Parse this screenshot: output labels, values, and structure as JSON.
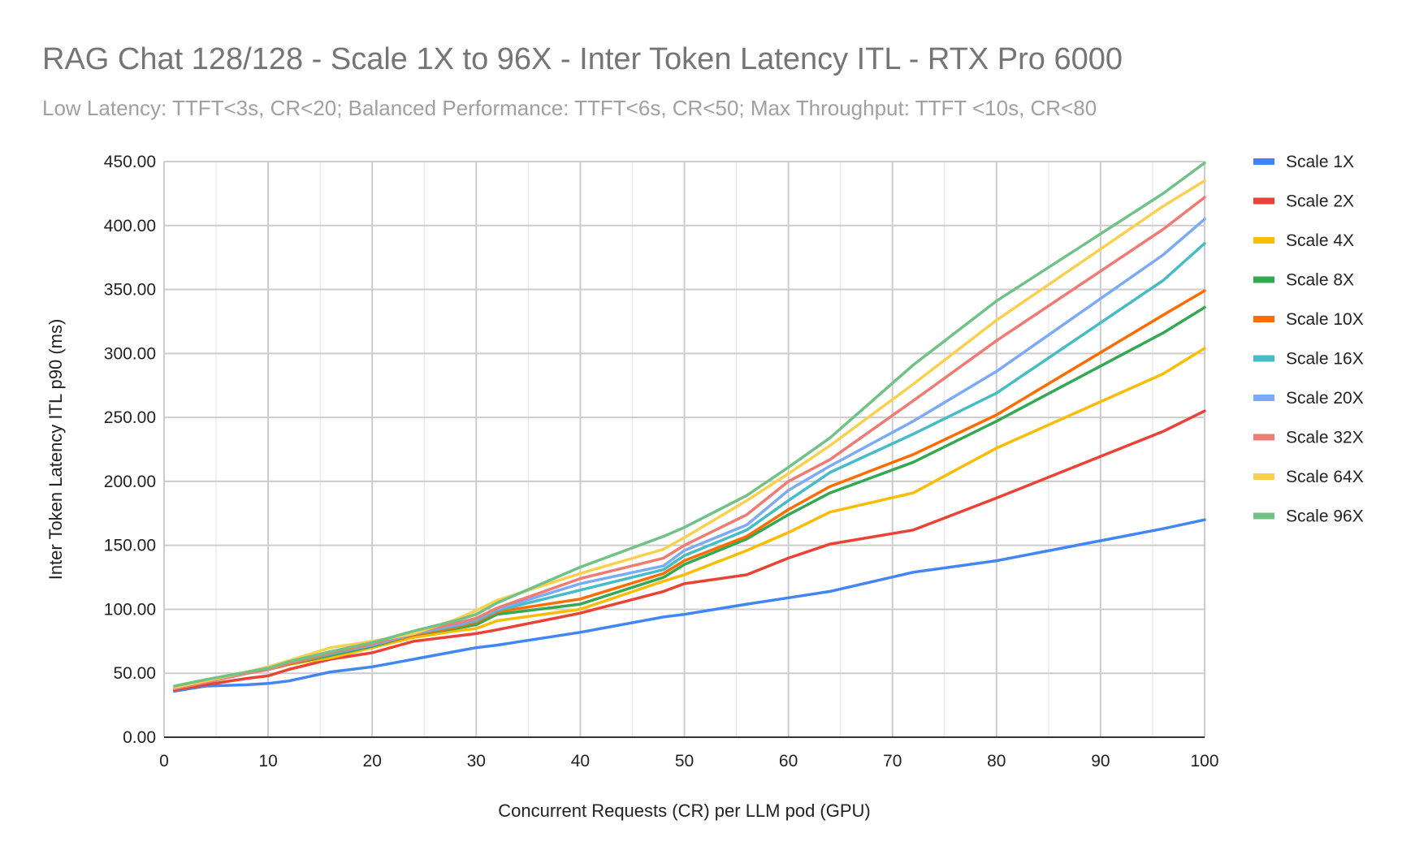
{
  "chart_data": {
    "type": "line",
    "title": "RAG Chat 128/128 - Scale 1X to 96X - Inter Token Latency ITL - RTX Pro 6000",
    "subtitle": "Low Latency: TTFT<3s, CR<20; Balanced Performance: TTFT<6s, CR<50; Max Throughput: TTFT <10s, CR<80",
    "xlabel": "Concurrent Requests (CR) per LLM pod (GPU)",
    "ylabel": "Inter Token Latency ITL p90 (ms)",
    "xlim": [
      0,
      100
    ],
    "ylim": [
      0,
      450
    ],
    "x_ticks": [
      0,
      10,
      20,
      30,
      40,
      50,
      60,
      70,
      80,
      90,
      100
    ],
    "y_ticks": [
      "0.00",
      "50.00",
      "100.00",
      "150.00",
      "200.00",
      "250.00",
      "300.00",
      "350.00",
      "400.00",
      "450.00"
    ],
    "grid": true,
    "legend_position": "right",
    "x": [
      1,
      4,
      8,
      10,
      12,
      16,
      20,
      24,
      28,
      30,
      32,
      40,
      48,
      50,
      56,
      60,
      64,
      72,
      80,
      96,
      100
    ],
    "series": [
      {
        "name": "Scale 1X",
        "color": "#4285f4",
        "values": [
          36,
          40,
          41,
          42,
          44,
          51,
          55,
          61,
          67,
          70,
          72,
          82,
          94,
          96,
          104,
          109,
          114,
          129,
          138,
          163,
          170
        ]
      },
      {
        "name": "Scale 2X",
        "color": "#ea4335",
        "values": [
          37,
          41,
          46,
          48,
          53,
          61,
          66,
          75,
          79,
          81,
          84,
          97,
          114,
          120,
          127,
          140,
          151,
          162,
          187,
          239,
          255
        ]
      },
      {
        "name": "Scale 4X",
        "color": "#fbbc04",
        "values": [
          38,
          43,
          50,
          54,
          57,
          62,
          70,
          78,
          83,
          85,
          91,
          100,
          122,
          127,
          146,
          160,
          176,
          191,
          226,
          284,
          304
        ]
      },
      {
        "name": "Scale 8X",
        "color": "#34a853",
        "values": [
          38,
          43,
          50,
          53,
          57,
          64,
          71,
          80,
          85,
          88,
          96,
          104,
          125,
          135,
          155,
          174,
          191,
          215,
          247,
          316,
          336
        ]
      },
      {
        "name": "Scale 10X",
        "color": "#ff6d01",
        "values": [
          38,
          43,
          50,
          53,
          57,
          65,
          72,
          80,
          86,
          90,
          98,
          108,
          128,
          138,
          157,
          178,
          196,
          221,
          252,
          330,
          349
        ]
      },
      {
        "name": "Scale 16X",
        "color": "#46bdc6",
        "values": [
          38,
          43,
          50,
          53,
          58,
          65,
          72,
          81,
          87,
          91,
          99,
          115,
          131,
          142,
          162,
          185,
          207,
          237,
          269,
          357,
          386
        ]
      },
      {
        "name": "Scale 20X",
        "color": "#7baaf7",
        "values": [
          38,
          43,
          50,
          53,
          58,
          66,
          72,
          81,
          88,
          92,
          100,
          120,
          134,
          146,
          166,
          193,
          212,
          247,
          286,
          377,
          405
        ]
      },
      {
        "name": "Scale 32X",
        "color": "#f07b72",
        "values": [
          38,
          43,
          50,
          53,
          58,
          66,
          73,
          82,
          89,
          93,
          101,
          124,
          140,
          150,
          174,
          200,
          217,
          263,
          310,
          397,
          422
        ]
      },
      {
        "name": "Scale 64X",
        "color": "#fcd04f",
        "values": [
          39,
          44,
          51,
          55,
          60,
          70,
          75,
          81,
          92,
          99,
          107,
          128,
          147,
          156,
          185,
          206,
          228,
          276,
          326,
          415,
          435
        ]
      },
      {
        "name": "Scale 96X",
        "color": "#71c287",
        "values": [
          40,
          45,
          51,
          54,
          59,
          67,
          74,
          83,
          91,
          96,
          105,
          133,
          157,
          164,
          189,
          211,
          234,
          291,
          341,
          425,
          449
        ]
      }
    ]
  }
}
